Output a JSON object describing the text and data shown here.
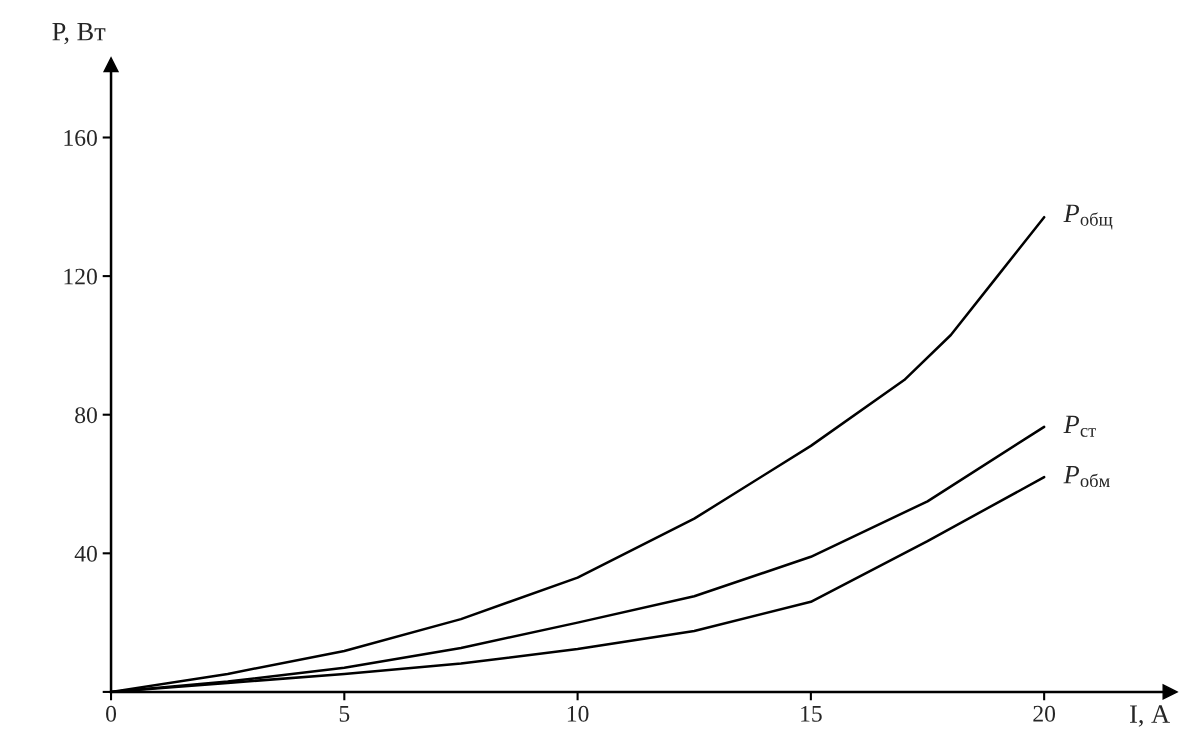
{
  "chart_data": {
    "type": "line",
    "xlabel": "I, А",
    "ylabel": "P, Вт",
    "x": [
      0,
      2.5,
      5,
      7.5,
      10,
      12.5,
      15,
      17,
      18,
      19,
      20
    ],
    "series": [
      {
        "name": "P$_{общ}$",
        "color": "#000000",
        "values": [
          0,
          5.2,
          11.8,
          21,
          33,
          50,
          71,
          90,
          103,
          120,
          137
        ]
      },
      {
        "name": "P$_{ст}$",
        "color": "#000000",
        "x": [
          0,
          2.5,
          5,
          7.5,
          10,
          12.5,
          15,
          17.5,
          20
        ],
        "values": [
          0,
          3,
          7,
          12.7,
          20,
          27.6,
          39,
          55,
          76.5
        ]
      },
      {
        "name": "P$_{обм}$",
        "color": "#000000",
        "x": [
          0,
          2.5,
          5,
          7.5,
          10,
          12.5,
          15,
          17.5,
          20
        ],
        "values": [
          0,
          2.6,
          5.2,
          8.2,
          12.4,
          17.6,
          26,
          43.5,
          62
        ]
      }
    ],
    "xlim": [
      0,
      22.7
    ],
    "ylim": [
      0,
      181
    ],
    "xticks": [
      0,
      5,
      10,
      15,
      20
    ],
    "yticks": [
      {
        "value": 0,
        "label": null
      },
      40,
      80,
      120,
      160
    ],
    "grid": false,
    "legend": false,
    "marker": "none",
    "line_style": "solid"
  }
}
